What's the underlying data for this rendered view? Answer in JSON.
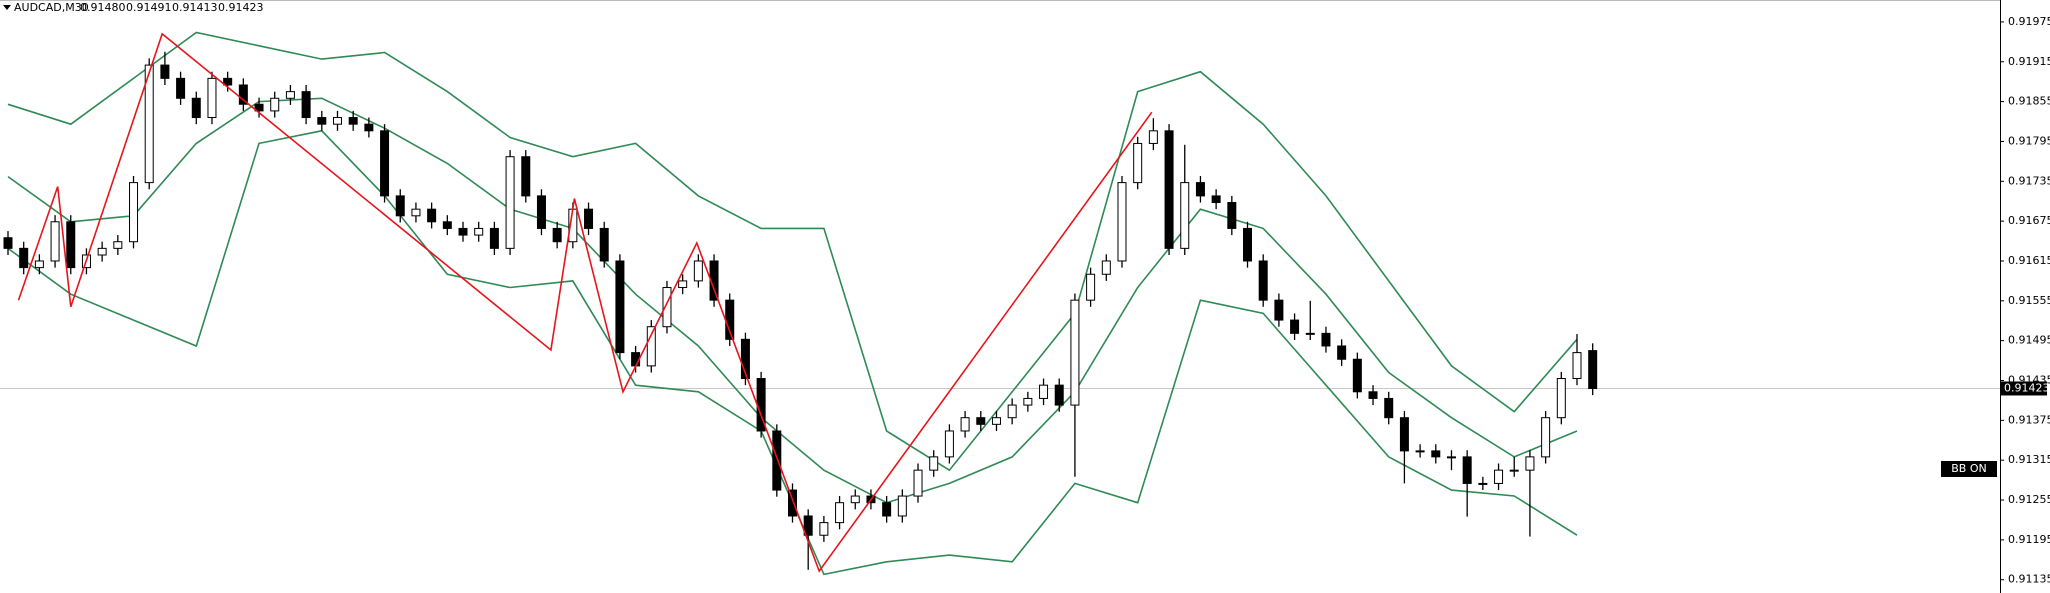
{
  "chart_data": {
    "type": "candlestick",
    "header": {
      "symbol": "AUDCAD,M30",
      "open": {
        "value": 0.9148,
        "label": "0.91480"
      },
      "high": {
        "value": 0.91491,
        "label": "0.91491"
      },
      "low": {
        "value": 0.91413,
        "label": "0.91413"
      },
      "close": {
        "value": 0.91423,
        "label": "0.91423"
      }
    },
    "ylim": [
      0.91115,
      0.92008
    ],
    "yticks": [
      0.91975,
      0.91915,
      0.91855,
      0.91795,
      0.91735,
      0.91675,
      0.91615,
      0.91555,
      0.91495,
      0.91435,
      0.91375,
      0.91315,
      0.91255,
      0.91195,
      0.91135
    ],
    "current_price": 0.91423,
    "indicator_label": "BB ON",
    "up_color": "#ffffff",
    "down_color": "#000000",
    "ohlc": [
      [
        0.9165,
        0.9166,
        0.91624,
        0.91634
      ],
      [
        0.91634,
        0.91644,
        0.91595,
        0.91605
      ],
      [
        0.91605,
        0.91625,
        0.91595,
        0.91615
      ],
      [
        0.91615,
        0.91684,
        0.91605,
        0.91674
      ],
      [
        0.91674,
        0.91684,
        0.91595,
        0.91605
      ],
      [
        0.91605,
        0.91634,
        0.91595,
        0.91624
      ],
      [
        0.91624,
        0.91644,
        0.91614,
        0.91634
      ],
      [
        0.91634,
        0.91654,
        0.91624,
        0.91644
      ],
      [
        0.91644,
        0.91743,
        0.91634,
        0.91733
      ],
      [
        0.91733,
        0.9192,
        0.91723,
        0.9191
      ],
      [
        0.9191,
        0.9193,
        0.9188,
        0.9189
      ],
      [
        0.9189,
        0.919,
        0.9185,
        0.9186
      ],
      [
        0.9186,
        0.9187,
        0.91821,
        0.91831
      ],
      [
        0.91831,
        0.919,
        0.91821,
        0.9189
      ],
      [
        0.9189,
        0.919,
        0.9187,
        0.9188
      ],
      [
        0.9188,
        0.9189,
        0.91841,
        0.91851
      ],
      [
        0.91851,
        0.91861,
        0.91831,
        0.91841
      ],
      [
        0.91841,
        0.9187,
        0.91831,
        0.9186
      ],
      [
        0.9186,
        0.9188,
        0.9185,
        0.9187
      ],
      [
        0.9187,
        0.9188,
        0.91821,
        0.91831
      ],
      [
        0.91831,
        0.91841,
        0.91811,
        0.91821
      ],
      [
        0.91821,
        0.91841,
        0.91811,
        0.91831
      ],
      [
        0.91831,
        0.91841,
        0.91811,
        0.91821
      ],
      [
        0.91821,
        0.91831,
        0.91801,
        0.91811
      ],
      [
        0.91811,
        0.91821,
        0.91703,
        0.91713
      ],
      [
        0.91713,
        0.91723,
        0.91673,
        0.91683
      ],
      [
        0.91683,
        0.91703,
        0.91673,
        0.91693
      ],
      [
        0.91693,
        0.91703,
        0.91664,
        0.91674
      ],
      [
        0.91674,
        0.91684,
        0.91654,
        0.91664
      ],
      [
        0.91664,
        0.91674,
        0.91644,
        0.91654
      ],
      [
        0.91654,
        0.91674,
        0.91644,
        0.91664
      ],
      [
        0.91664,
        0.91674,
        0.91624,
        0.91634
      ],
      [
        0.91634,
        0.91782,
        0.91624,
        0.91772
      ],
      [
        0.91772,
        0.91782,
        0.91703,
        0.91713
      ],
      [
        0.91713,
        0.91723,
        0.91654,
        0.91664
      ],
      [
        0.91664,
        0.91674,
        0.91634,
        0.91644
      ],
      [
        0.91644,
        0.91703,
        0.91634,
        0.91693
      ],
      [
        0.91693,
        0.91703,
        0.91654,
        0.91664
      ],
      [
        0.91664,
        0.91674,
        0.91605,
        0.91615
      ],
      [
        0.91615,
        0.91625,
        0.91467,
        0.91477
      ],
      [
        0.91477,
        0.91487,
        0.91447,
        0.91457
      ],
      [
        0.91457,
        0.91526,
        0.91447,
        0.91516
      ],
      [
        0.91516,
        0.91585,
        0.91506,
        0.91575
      ],
      [
        0.91575,
        0.91595,
        0.91565,
        0.91585
      ],
      [
        0.91585,
        0.91625,
        0.91575,
        0.91615
      ],
      [
        0.91615,
        0.91625,
        0.91546,
        0.91556
      ],
      [
        0.91556,
        0.91566,
        0.91487,
        0.91497
      ],
      [
        0.91497,
        0.91507,
        0.91428,
        0.91438
      ],
      [
        0.91438,
        0.91448,
        0.91349,
        0.91359
      ],
      [
        0.91359,
        0.91369,
        0.9126,
        0.9127
      ],
      [
        0.9127,
        0.9128,
        0.91221,
        0.91231
      ],
      [
        0.91231,
        0.91241,
        0.9115,
        0.91202
      ],
      [
        0.91202,
        0.91231,
        0.91192,
        0.91221
      ],
      [
        0.91221,
        0.91261,
        0.91211,
        0.91251
      ],
      [
        0.91251,
        0.91271,
        0.91241,
        0.91261
      ],
      [
        0.91261,
        0.91271,
        0.91241,
        0.91251
      ],
      [
        0.91251,
        0.91261,
        0.91221,
        0.91231
      ],
      [
        0.91231,
        0.91271,
        0.91221,
        0.91261
      ],
      [
        0.91261,
        0.9131,
        0.91251,
        0.913
      ],
      [
        0.913,
        0.9133,
        0.9129,
        0.9132
      ],
      [
        0.9132,
        0.91369,
        0.9131,
        0.91359
      ],
      [
        0.91359,
        0.91389,
        0.91349,
        0.91379
      ],
      [
        0.91379,
        0.91389,
        0.91359,
        0.91369
      ],
      [
        0.91369,
        0.91389,
        0.91359,
        0.91379
      ],
      [
        0.91379,
        0.91408,
        0.91369,
        0.91398
      ],
      [
        0.91398,
        0.91418,
        0.91388,
        0.91408
      ],
      [
        0.91408,
        0.91438,
        0.91398,
        0.91428
      ],
      [
        0.91428,
        0.91438,
        0.91388,
        0.91398
      ],
      [
        0.91398,
        0.91566,
        0.9129,
        0.91556
      ],
      [
        0.91556,
        0.91605,
        0.91546,
        0.91595
      ],
      [
        0.91595,
        0.91625,
        0.91585,
        0.91615
      ],
      [
        0.91615,
        0.91743,
        0.91605,
        0.91733
      ],
      [
        0.91733,
        0.91802,
        0.91723,
        0.91792
      ],
      [
        0.91792,
        0.9183,
        0.91782,
        0.91811
      ],
      [
        0.91811,
        0.91821,
        0.91624,
        0.91634
      ],
      [
        0.91634,
        0.9179,
        0.91624,
        0.91733
      ],
      [
        0.91733,
        0.91743,
        0.91703,
        0.91713
      ],
      [
        0.91713,
        0.91723,
        0.91693,
        0.91703
      ],
      [
        0.91703,
        0.91713,
        0.91654,
        0.91664
      ],
      [
        0.91664,
        0.91674,
        0.91605,
        0.91615
      ],
      [
        0.91615,
        0.91625,
        0.91546,
        0.91556
      ],
      [
        0.91556,
        0.91566,
        0.91516,
        0.91526
      ],
      [
        0.91526,
        0.91536,
        0.91496,
        0.91506
      ],
      [
        0.91506,
        0.91555,
        0.91496,
        0.91506
      ],
      [
        0.91506,
        0.91516,
        0.91477,
        0.91487
      ],
      [
        0.91487,
        0.91497,
        0.91457,
        0.91467
      ],
      [
        0.91467,
        0.91477,
        0.91408,
        0.91418
      ],
      [
        0.91418,
        0.91428,
        0.91398,
        0.91408
      ],
      [
        0.91408,
        0.91418,
        0.91369,
        0.91379
      ],
      [
        0.91379,
        0.91389,
        0.9128,
        0.91329
      ],
      [
        0.91329,
        0.91339,
        0.91319,
        0.91329
      ],
      [
        0.91329,
        0.91339,
        0.9131,
        0.9132
      ],
      [
        0.9132,
        0.9133,
        0.913,
        0.9132
      ],
      [
        0.9132,
        0.9133,
        0.9123,
        0.9128
      ],
      [
        0.9128,
        0.9129,
        0.9127,
        0.9128
      ],
      [
        0.9128,
        0.9131,
        0.9127,
        0.913
      ],
      [
        0.913,
        0.9132,
        0.9129,
        0.913
      ],
      [
        0.913,
        0.9133,
        0.912,
        0.9132
      ],
      [
        0.9132,
        0.91389,
        0.9131,
        0.91379
      ],
      [
        0.91379,
        0.91448,
        0.91369,
        0.91438
      ],
      [
        0.91438,
        0.91505,
        0.91428,
        0.91477
      ],
      [
        0.9148,
        0.91491,
        0.91413,
        0.91423
      ]
    ],
    "bands": {
      "color": "#2f8a55",
      "x": [
        0,
        4,
        8,
        12,
        16,
        20,
        24,
        28,
        32,
        36,
        40,
        44,
        48,
        52,
        56,
        60,
        64,
        68,
        72,
        76,
        80,
        84,
        88,
        92,
        96,
        100
      ],
      "upper": [
        0.91851,
        0.91821,
        0.9189,
        0.91959,
        0.91939,
        0.91919,
        0.91929,
        0.9187,
        0.91801,
        0.91772,
        0.91792,
        0.91713,
        0.91664,
        0.91664,
        0.91359,
        0.913,
        0.91418,
        0.91536,
        0.9187,
        0.919,
        0.91821,
        0.91713,
        0.91585,
        0.91457,
        0.91388,
        0.91497
      ],
      "middle": [
        0.91742,
        0.91674,
        0.91683,
        0.91792,
        0.91855,
        0.9186,
        0.91815,
        0.91762,
        0.91693,
        0.91664,
        0.91565,
        0.91487,
        0.91379,
        0.913,
        0.91251,
        0.9128,
        0.9132,
        0.91418,
        0.91575,
        0.91693,
        0.91664,
        0.91565,
        0.91447,
        0.91379,
        0.9132,
        0.91359
      ],
      "lower": [
        0.91634,
        0.91565,
        0.91526,
        0.91487,
        0.91792,
        0.91811,
        0.91713,
        0.91595,
        0.91575,
        0.91585,
        0.91428,
        0.91418,
        0.91359,
        0.91143,
        0.91162,
        0.91172,
        0.91162,
        0.9128,
        0.91251,
        0.91556,
        0.91536,
        0.91428,
        0.9132,
        0.9127,
        0.91261,
        0.91202
      ]
    },
    "zigzag": {
      "color": "#e8141c",
      "x": [
        0.67,
        3.17,
        4,
        9.83,
        34.6,
        36.1,
        39.2,
        43.9,
        51.7,
        72.9
      ],
      "values": [
        0.91556,
        0.91727,
        0.91546,
        0.91957,
        0.91481,
        0.91709,
        0.91418,
        0.91642,
        0.91148,
        0.91839
      ]
    }
  }
}
